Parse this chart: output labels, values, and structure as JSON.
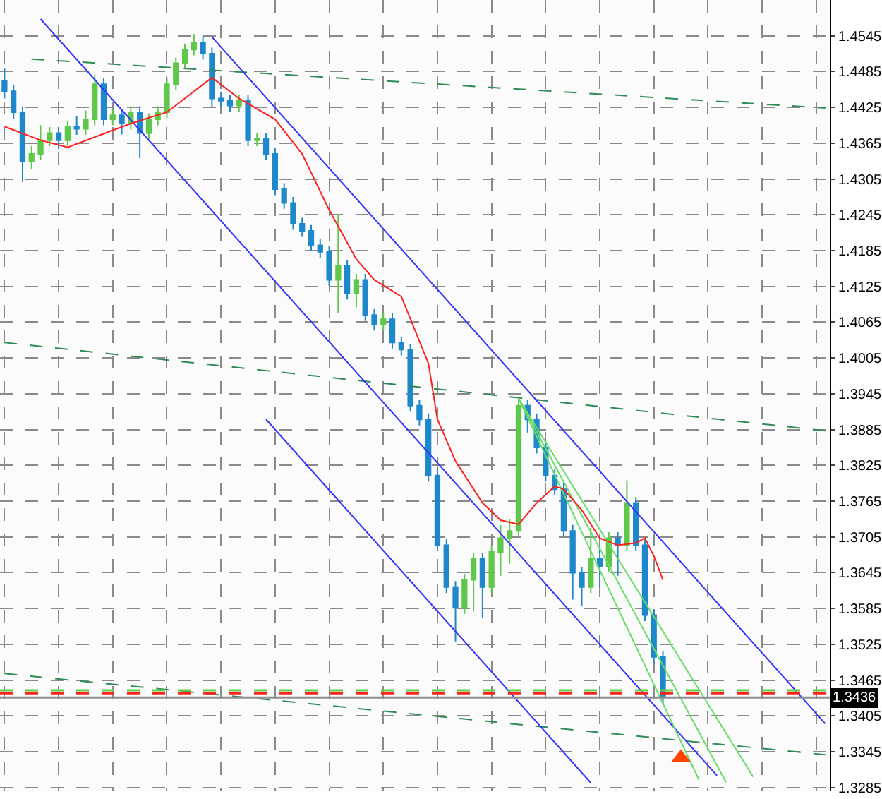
{
  "chart_data": {
    "type": "candlestick",
    "categories": [
      null,
      null,
      null,
      null,
      null,
      null,
      null,
      null,
      null,
      null,
      null,
      null,
      null,
      null,
      null,
      null,
      null,
      null,
      null,
      null,
      null,
      null,
      null,
      null,
      null,
      null,
      null,
      null,
      null,
      null,
      null,
      null,
      null,
      null,
      null,
      null,
      null,
      null,
      null,
      null,
      null,
      null,
      null,
      null,
      null,
      null,
      null,
      null,
      null,
      null,
      null,
      null,
      null,
      null,
      null,
      null,
      null,
      null,
      null,
      null,
      null,
      null,
      null,
      null,
      null,
      null,
      null,
      null,
      null,
      null,
      null,
      null,
      null,
      null,
      null,
      null,
      null,
      null,
      null,
      null,
      null,
      null,
      null,
      null,
      null,
      null,
      null,
      null,
      null,
      null,
      null,
      null
    ],
    "ylim": [
      1.328,
      1.4605
    ],
    "yticks": [
      1.3285,
      1.3345,
      1.3405,
      1.3465,
      1.3525,
      1.3585,
      1.3645,
      1.3705,
      1.3765,
      1.3825,
      1.3885,
      1.3945,
      1.4005,
      1.4065,
      1.4125,
      1.4185,
      1.4245,
      1.4305,
      1.4365,
      1.4425,
      1.4485,
      1.4545
    ],
    "tick_labels": "y",
    "grid": true,
    "series": [
      {
        "type": "line",
        "color": "#2e8b57",
        "line_style": "dashed",
        "values": [
          null,
          null,
          null,
          1.4506,
          null,
          null,
          null,
          null,
          null,
          null,
          null,
          null,
          null,
          null,
          null,
          null,
          null,
          null,
          null,
          null,
          null,
          null,
          null,
          null,
          null,
          null,
          null,
          null,
          null,
          null,
          null,
          null,
          null,
          null,
          null,
          null,
          null,
          null,
          null,
          null,
          null,
          null,
          null,
          null,
          null,
          null,
          null,
          null,
          null,
          null,
          null,
          null,
          null,
          null,
          null,
          null,
          null,
          null,
          null,
          null,
          null,
          null,
          null,
          null,
          null,
          null,
          null,
          null,
          null,
          null,
          null,
          null,
          null,
          null,
          null,
          null,
          null,
          null,
          null,
          null,
          null,
          null,
          null,
          null,
          null,
          null,
          null,
          null,
          null,
          null,
          null,
          1.4424
        ]
      },
      {
        "type": "line",
        "color": "#2e8b57",
        "line_style": "dashed",
        "values": [
          1.4031,
          null,
          null,
          null,
          null,
          null,
          null,
          null,
          null,
          null,
          null,
          null,
          null,
          null,
          null,
          null,
          null,
          null,
          null,
          null,
          null,
          null,
          null,
          null,
          null,
          null,
          null,
          null,
          null,
          null,
          null,
          null,
          null,
          null,
          null,
          null,
          null,
          null,
          null,
          null,
          null,
          null,
          null,
          null,
          null,
          null,
          null,
          null,
          null,
          null,
          null,
          null,
          null,
          null,
          null,
          null,
          null,
          null,
          null,
          null,
          null,
          null,
          null,
          null,
          null,
          null,
          null,
          null,
          null,
          null,
          null,
          null,
          null,
          null,
          null,
          null,
          null,
          null,
          null,
          null,
          null,
          null,
          null,
          null,
          null,
          null,
          null,
          null,
          null,
          null,
          null,
          1.3883
        ]
      },
      {
        "type": "line",
        "color": "#2e8b57",
        "line_style": "dashed",
        "values": [
          1.3476,
          null,
          null,
          null,
          null,
          null,
          null,
          null,
          null,
          null,
          null,
          null,
          null,
          null,
          null,
          null,
          null,
          null,
          null,
          null,
          null,
          null,
          null,
          null,
          null,
          null,
          null,
          null,
          null,
          null,
          null,
          null,
          null,
          null,
          null,
          null,
          null,
          null,
          null,
          null,
          null,
          null,
          null,
          null,
          null,
          null,
          null,
          null,
          null,
          null,
          null,
          null,
          null,
          null,
          null,
          null,
          null,
          null,
          null,
          null,
          null,
          null,
          null,
          null,
          null,
          null,
          null,
          null,
          null,
          null,
          null,
          null,
          null,
          null,
          null,
          null,
          null,
          null,
          null,
          null,
          null,
          null,
          null,
          null,
          null,
          null,
          null,
          null,
          null,
          null,
          null,
          1.334
        ]
      },
      {
        "type": "line",
        "color": "#3333ff",
        "values": [
          null,
          null,
          null,
          null,
          null,
          null,
          null,
          null,
          null,
          null,
          null,
          null,
          null,
          null,
          null,
          null,
          null,
          null,
          null,
          null,
          null,
          null,
          null,
          1.4543,
          null,
          null,
          null,
          null,
          null,
          null,
          null,
          null,
          null,
          null,
          null,
          null,
          null,
          null,
          null,
          null,
          null,
          null,
          null,
          null,
          null,
          null,
          null,
          null,
          null,
          null,
          null,
          null,
          null,
          null,
          null,
          null,
          null,
          null,
          null,
          null,
          null,
          null,
          null,
          null,
          null,
          null,
          null,
          null,
          null,
          null,
          null,
          null,
          null,
          null,
          null,
          null,
          null,
          null,
          null,
          null,
          null,
          null,
          null,
          null,
          null,
          null,
          null,
          null,
          null,
          null,
          null,
          1.3392
        ]
      },
      {
        "type": "line",
        "color": "#3333ff",
        "values": [
          null,
          null,
          null,
          null,
          1.4573,
          null,
          null,
          null,
          null,
          null,
          null,
          null,
          null,
          null,
          null,
          null,
          null,
          null,
          null,
          null,
          null,
          null,
          null,
          null,
          null,
          null,
          null,
          null,
          null,
          null,
          null,
          null,
          null,
          null,
          null,
          null,
          null,
          null,
          null,
          null,
          null,
          null,
          null,
          null,
          null,
          null,
          null,
          null,
          null,
          null,
          null,
          null,
          null,
          null,
          null,
          null,
          null,
          null,
          null,
          null,
          null,
          null,
          null,
          null,
          null,
          null,
          null,
          null,
          null,
          null,
          null,
          null,
          null,
          null,
          null,
          null,
          null,
          null,
          null,
          1.3305,
          null,
          null,
          null,
          null,
          null,
          null,
          null,
          null,
          null,
          null,
          null,
          null
        ]
      },
      {
        "type": "line",
        "color": "#3333ff",
        "values": [
          null,
          null,
          null,
          null,
          null,
          null,
          null,
          null,
          null,
          null,
          null,
          null,
          null,
          null,
          null,
          null,
          null,
          null,
          null,
          null,
          null,
          null,
          null,
          null,
          null,
          null,
          null,
          null,
          null,
          1.3902,
          null,
          null,
          null,
          null,
          null,
          null,
          null,
          null,
          null,
          null,
          null,
          null,
          null,
          null,
          null,
          null,
          null,
          null,
          null,
          null,
          null,
          null,
          null,
          null,
          null,
          null,
          null,
          null,
          null,
          null,
          null,
          null,
          null,
          null,
          null,
          1.3293,
          null,
          null,
          null,
          null,
          null,
          null,
          null,
          null,
          null,
          null,
          null,
          null,
          null,
          null,
          null,
          null,
          null,
          null,
          null,
          null,
          null,
          null,
          null,
          null,
          null,
          null
        ]
      },
      {
        "type": "line",
        "color": "#66dd66",
        "values": [
          null,
          null,
          null,
          null,
          null,
          null,
          null,
          null,
          null,
          null,
          null,
          null,
          null,
          null,
          null,
          null,
          null,
          null,
          null,
          null,
          null,
          null,
          null,
          null,
          null,
          null,
          null,
          null,
          null,
          null,
          null,
          null,
          null,
          null,
          null,
          null,
          null,
          null,
          null,
          null,
          null,
          null,
          null,
          null,
          null,
          null,
          null,
          null,
          null,
          null,
          null,
          null,
          null,
          null,
          null,
          null,
          null,
          1.3937,
          null,
          null,
          null,
          null,
          null,
          null,
          null,
          null,
          null,
          null,
          null,
          null,
          null,
          null,
          null,
          null,
          null,
          null,
          null,
          1.3298,
          null,
          null,
          null,
          null,
          null,
          null,
          null,
          null,
          null,
          null,
          null,
          null,
          null,
          null
        ]
      },
      {
        "type": "line",
        "color": "#66dd66",
        "values": [
          null,
          null,
          null,
          null,
          null,
          null,
          null,
          null,
          null,
          null,
          null,
          null,
          null,
          null,
          null,
          null,
          null,
          null,
          null,
          null,
          null,
          null,
          null,
          null,
          null,
          null,
          null,
          null,
          null,
          null,
          null,
          null,
          null,
          null,
          null,
          null,
          null,
          null,
          null,
          null,
          null,
          null,
          null,
          null,
          null,
          null,
          null,
          null,
          null,
          null,
          null,
          null,
          null,
          null,
          null,
          null,
          null,
          1.3937,
          null,
          null,
          null,
          null,
          null,
          null,
          null,
          null,
          null,
          null,
          null,
          null,
          null,
          null,
          null,
          null,
          null,
          null,
          null,
          null,
          null,
          null,
          1.3294,
          null,
          null,
          null,
          null,
          null,
          null,
          null,
          null,
          null,
          null,
          null
        ]
      },
      {
        "type": "line",
        "color": "#66dd66",
        "values": [
          null,
          null,
          null,
          null,
          null,
          null,
          null,
          null,
          null,
          null,
          null,
          null,
          null,
          null,
          null,
          null,
          null,
          null,
          null,
          null,
          null,
          null,
          null,
          null,
          null,
          null,
          null,
          null,
          null,
          null,
          null,
          null,
          null,
          null,
          null,
          null,
          null,
          null,
          null,
          null,
          null,
          null,
          null,
          null,
          null,
          null,
          null,
          null,
          null,
          null,
          null,
          null,
          null,
          null,
          null,
          null,
          null,
          1.3937,
          null,
          null,
          null,
          null,
          null,
          null,
          null,
          null,
          null,
          null,
          null,
          null,
          null,
          null,
          null,
          null,
          null,
          null,
          null,
          null,
          null,
          null,
          null,
          null,
          null,
          1.3303,
          null,
          null,
          null,
          null,
          null,
          null,
          null,
          null
        ]
      },
      {
        "type": "line",
        "color": "#ff2020",
        "values": [
          1.4393,
          null,
          null,
          null,
          1.437,
          null,
          null,
          1.4358,
          null,
          null,
          null,
          null,
          null,
          null,
          1.4398,
          null,
          null,
          null,
          1.4417,
          null,
          null,
          null,
          null,
          1.4475,
          null,
          null,
          1.444,
          null,
          null,
          null,
          1.4405,
          null,
          null,
          1.4347,
          null,
          null,
          1.4253,
          null,
          null,
          1.4171,
          null,
          1.4136,
          null,
          null,
          1.4108,
          null,
          null,
          1.3996,
          1.3902,
          null,
          1.3832,
          null,
          null,
          1.3762,
          null,
          1.3733,
          null,
          1.3726,
          null,
          1.3762,
          null,
          1.379,
          1.3785,
          null,
          1.375,
          null,
          1.3703,
          null,
          1.3691,
          null,
          1.3695,
          1.3703,
          1.3673,
          1.3633,
          null,
          null,
          null,
          null,
          null,
          null,
          null,
          null,
          null,
          null,
          null,
          null,
          null,
          null,
          null,
          null,
          null,
          null
        ]
      },
      {
        "type": "scatter",
        "color": "#ff4500",
        "marker": "triangle",
        "values": [
          null,
          null,
          null,
          null,
          null,
          null,
          null,
          null,
          null,
          null,
          null,
          null,
          null,
          null,
          null,
          null,
          null,
          null,
          null,
          null,
          null,
          null,
          null,
          null,
          null,
          null,
          null,
          null,
          null,
          null,
          null,
          null,
          null,
          null,
          null,
          null,
          null,
          null,
          null,
          null,
          null,
          null,
          null,
          null,
          null,
          null,
          null,
          null,
          null,
          null,
          null,
          null,
          null,
          null,
          null,
          null,
          null,
          null,
          null,
          null,
          null,
          null,
          null,
          null,
          null,
          null,
          null,
          null,
          null,
          null,
          null,
          null,
          null,
          null,
          null,
          1.3335,
          null,
          null,
          null,
          null,
          null,
          null,
          null,
          null,
          null,
          null,
          null,
          null,
          null,
          null,
          null,
          null
        ]
      },
      {
        "colors": [
          "#1e88cc",
          "#1e88cc",
          "#1e88cc",
          "#5fc74a",
          "#5fc74a",
          "#5fc74a",
          "#1e88cc",
          "#5fc74a",
          "#1e88cc",
          "#5fc74a",
          "#5fc74a",
          "#1e88cc",
          "#5fc74a",
          "#1e88cc",
          "#5fc74a",
          "#1e88cc",
          "#5fc74a",
          "#5fc74a",
          "#5fc74a",
          "#5fc74a",
          "#5fc74a",
          "#5fc74a",
          "#1e88cc",
          "#1e88cc",
          "#1e88cc",
          "#1e88cc",
          "#5fc74a",
          "#1e88cc",
          "#5fc74a",
          "#1e88cc",
          "#1e88cc",
          "#1e88cc",
          "#1e88cc",
          "#1e88cc",
          "#1e88cc",
          "#1e88cc",
          "#1e88cc",
          "#5fc74a",
          "#1e88cc",
          "#5fc74a",
          "#1e88cc",
          "#1e88cc",
          "#5fc74a",
          "#1e88cc",
          "#1e88cc",
          "#1e88cc",
          "#1e88cc",
          "#1e88cc",
          "#1e88cc",
          "#1e88cc",
          "#1e88cc",
          "#5fc74a",
          "#5fc74a",
          "#1e88cc",
          "#5fc74a",
          "#5fc74a",
          "#5fc74a",
          "#5fc74a",
          "#1e88cc",
          "#1e88cc",
          "#1e88cc",
          "#1e88cc",
          "#1e88cc",
          "#1e88cc",
          "#1e88cc",
          "#5fc74a",
          "#1e88cc",
          "#5fc74a",
          "#1e88cc",
          "#5fc74a",
          "#1e88cc",
          "#1e88cc",
          "#1e88cc",
          "#1e88cc",
          null,
          null,
          null,
          null,
          null,
          null,
          null,
          null,
          null,
          null,
          null,
          null,
          null,
          null,
          null,
          null,
          null,
          null
        ],
        "ohlc": [
          [
            1.447,
            1.449,
            1.444,
            1.4452
          ],
          [
            1.4452,
            1.4462,
            1.4405,
            1.4417
          ],
          [
            1.4417,
            1.4427,
            1.43,
            1.4335
          ],
          [
            1.4335,
            1.436,
            1.4322,
            1.4347
          ],
          [
            1.4347,
            1.4395,
            1.4337,
            1.437
          ],
          [
            1.437,
            1.4392,
            1.436,
            1.4382
          ],
          [
            1.4382,
            1.4392,
            1.4355,
            1.437
          ],
          [
            1.437,
            1.4403,
            1.436,
            1.4393
          ],
          [
            1.4393,
            1.441,
            1.4379,
            1.4389
          ],
          [
            1.4389,
            1.442,
            1.4379,
            1.4405
          ],
          [
            1.4405,
            1.448,
            1.4395,
            1.4464
          ],
          [
            1.4464,
            1.4474,
            1.4395,
            1.4405
          ],
          [
            1.4405,
            1.4422,
            1.4395,
            1.4412
          ],
          [
            1.4412,
            1.4422,
            1.438,
            1.4398
          ],
          [
            1.4398,
            1.4427,
            1.4388,
            1.4417
          ],
          [
            1.4417,
            1.4427,
            1.434,
            1.4382
          ],
          [
            1.4382,
            1.4415,
            1.4372,
            1.4405
          ],
          [
            1.4405,
            1.4427,
            1.4395,
            1.4417
          ],
          [
            1.4417,
            1.4474,
            1.4407,
            1.4464
          ],
          [
            1.4464,
            1.4509,
            1.4454,
            1.4499
          ],
          [
            1.4499,
            1.4532,
            1.4489,
            1.4522
          ],
          [
            1.4522,
            1.4548,
            1.4512,
            1.4534
          ],
          [
            1.4534,
            1.4544,
            1.4505,
            1.4515
          ],
          [
            1.4515,
            1.4525,
            1.4425,
            1.444
          ],
          [
            1.444,
            1.445,
            1.4426,
            1.4436
          ],
          [
            1.4436,
            1.4446,
            1.4418,
            1.4428
          ],
          [
            1.4428,
            1.4446,
            1.4418,
            1.4436
          ],
          [
            1.4436,
            1.4446,
            1.436,
            1.437
          ],
          [
            1.437,
            1.4382,
            1.436,
            1.4372
          ],
          [
            1.4372,
            1.4382,
            1.4337,
            1.4347
          ],
          [
            1.4347,
            1.4357,
            1.4278,
            1.4288
          ],
          [
            1.4288,
            1.4298,
            1.4255,
            1.4265
          ],
          [
            1.4265,
            1.4275,
            1.422,
            1.423
          ],
          [
            1.423,
            1.424,
            1.4208,
            1.4218
          ],
          [
            1.4218,
            1.4228,
            1.4184,
            1.4194
          ],
          [
            1.4194,
            1.4204,
            1.4173,
            1.4183
          ],
          [
            1.4183,
            1.4193,
            1.4126,
            1.4136
          ],
          [
            1.4136,
            1.4246,
            1.408,
            1.4159
          ],
          [
            1.4159,
            1.4169,
            1.4103,
            1.4113
          ],
          [
            1.4113,
            1.4146,
            1.409,
            1.4136
          ],
          [
            1.4136,
            1.4146,
            1.4067,
            1.4077
          ],
          [
            1.4077,
            1.4087,
            1.4051,
            1.4061
          ],
          [
            1.4061,
            1.408,
            1.4051,
            1.407
          ],
          [
            1.407,
            1.408,
            1.4021,
            1.4031
          ],
          [
            1.4031,
            1.4041,
            1.4009,
            1.4019
          ],
          [
            1.4019,
            1.4029,
            1.3915,
            1.3925
          ],
          [
            1.3925,
            1.3935,
            1.3892,
            1.3902
          ],
          [
            1.3902,
            1.3912,
            1.3798,
            1.3808
          ],
          [
            1.3808,
            1.3818,
            1.3681,
            1.3691
          ],
          [
            1.3691,
            1.3701,
            1.3611,
            1.3621
          ],
          [
            1.3621,
            1.3631,
            1.353,
            1.3586
          ],
          [
            1.3586,
            1.3643,
            1.3576,
            1.3633
          ],
          [
            1.3633,
            1.3678,
            1.358,
            1.3668
          ],
          [
            1.3668,
            1.3678,
            1.357,
            1.3621
          ],
          [
            1.3621,
            1.369,
            1.3611,
            1.368
          ],
          [
            1.368,
            1.3725,
            1.364,
            1.3703
          ],
          [
            1.3703,
            1.3735,
            1.366,
            1.3715
          ],
          [
            1.3715,
            1.3937,
            1.3705,
            1.3925
          ],
          [
            1.3925,
            1.3935,
            1.388,
            1.3902
          ],
          [
            1.3902,
            1.3912,
            1.3845,
            1.3855
          ],
          [
            1.3855,
            1.3865,
            1.3798,
            1.3808
          ],
          [
            1.3808,
            1.3818,
            1.3775,
            1.3785
          ],
          [
            1.3785,
            1.3795,
            1.3705,
            1.3715
          ],
          [
            1.3715,
            1.3725,
            1.36,
            1.3645
          ],
          [
            1.3645,
            1.3655,
            1.359,
            1.3621
          ],
          [
            1.3621,
            1.372,
            1.3611,
            1.3668
          ],
          [
            1.3668,
            1.369,
            1.362,
            1.3656
          ],
          [
            1.3656,
            1.3713,
            1.3646,
            1.3703
          ],
          [
            1.3703,
            1.3713,
            1.364,
            1.3691
          ],
          [
            1.3691,
            1.38,
            1.3681,
            1.3762
          ],
          [
            1.3762,
            1.3772,
            1.3681,
            1.3691
          ],
          [
            1.3691,
            1.3701,
            1.3564,
            1.3574
          ],
          [
            1.3574,
            1.3584,
            1.3494,
            1.3504
          ],
          [
            1.3504,
            1.3514,
            1.3425,
            1.3436
          ],
          null,
          null,
          null,
          null,
          null,
          null,
          null,
          null,
          null,
          null,
          null,
          null,
          null,
          null,
          null,
          null,
          null,
          null
        ]
      }
    ],
    "ref_lines": [
      {
        "axis": "y",
        "value": 1.3448,
        "color": "#66cc44",
        "line_style": "dashed"
      },
      {
        "axis": "y",
        "value": 1.3443,
        "color": "#ff2020",
        "line_style": "dashed"
      },
      {
        "axis": "y",
        "value": 1.3436,
        "color": "#909090",
        "line_style": "solid",
        "label": "1.3436"
      }
    ]
  }
}
